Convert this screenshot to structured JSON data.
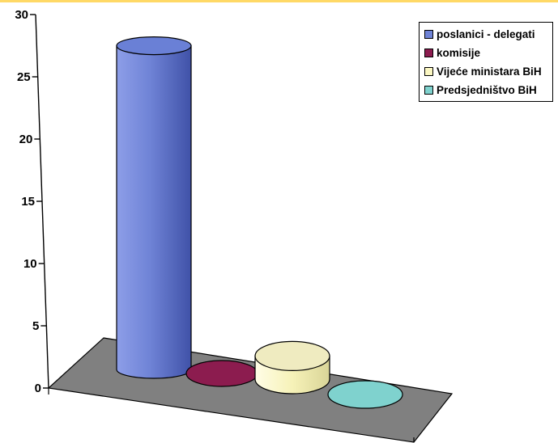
{
  "chart_data": {
    "type": "bar",
    "style": "3d-cylinder",
    "categories": [
      "poslanici - delegati",
      "komisije",
      "Vijeće ministara BiH",
      "Predsjedništvo BiH"
    ],
    "values": [
      28,
      0,
      2,
      0
    ],
    "colors": [
      "#6f83d6",
      "#8c1c4f",
      "#fbf7c2",
      "#7fd2ce"
    ],
    "ylim": [
      0,
      30
    ],
    "yticks": [
      0,
      5,
      10,
      15,
      20,
      25,
      30
    ],
    "legend": {
      "position": "top-right",
      "entries": [
        "poslanici - delegati",
        "komisije",
        "Vijeće ministara BiH",
        "Predsjedništvo BiH"
      ]
    },
    "floor_color": "#808080",
    "grid": false
  }
}
